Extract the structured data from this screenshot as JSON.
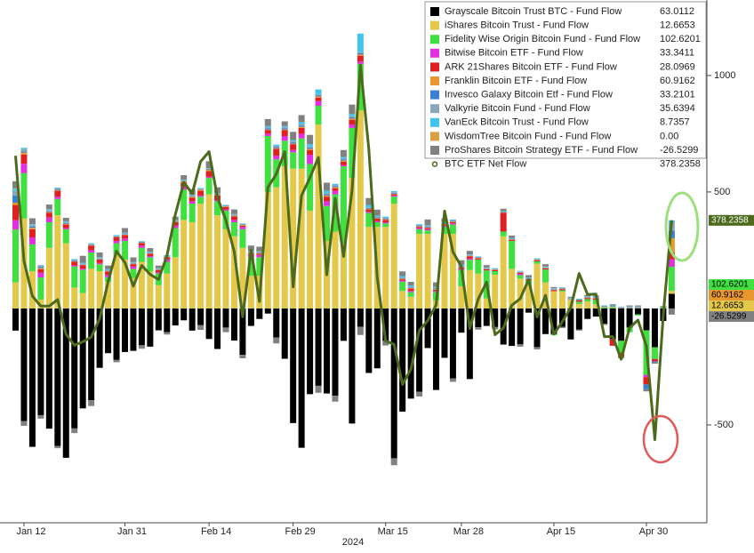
{
  "chart_data": {
    "type": "bar",
    "stacked": true,
    "categories": [
      null,
      "Jan 12",
      null,
      null,
      null,
      null,
      null,
      null,
      null,
      null,
      null,
      null,
      null,
      "Jan 31",
      null,
      null,
      null,
      null,
      null,
      null,
      null,
      null,
      null,
      "Feb 14",
      null,
      null,
      null,
      null,
      null,
      null,
      null,
      null,
      null,
      "Feb 29",
      null,
      null,
      null,
      null,
      null,
      null,
      null,
      null,
      null,
      null,
      "Mar 15",
      null,
      null,
      null,
      null,
      null,
      null,
      null,
      null,
      "Mar 28",
      null,
      null,
      null,
      null,
      null,
      null,
      null,
      null,
      null,
      null,
      "Apr 15",
      null,
      null,
      null,
      null,
      null,
      null,
      null,
      null,
      null,
      null,
      "Apr 30",
      null,
      null,
      null
    ],
    "x_label": "2024",
    "ylim": [
      -920,
      1324
    ],
    "yticks": [
      1000,
      500,
      -500
    ],
    "series": [
      {
        "name": "Grayscale Bitcoin Trust BTC - Fund Flow",
        "color": "#000000",
        "values": [
          -95,
          -484,
          -594,
          -458,
          -516,
          -590,
          -641,
          -515,
          -429,
          -394,
          -255,
          -192,
          -221,
          -187,
          -182,
          -158,
          -164,
          -94,
          -102,
          -73,
          -51,
          -95,
          -72,
          -131,
          -174,
          -82,
          -138,
          -199,
          -75,
          -45,
          -22,
          -125,
          -216,
          -492,
          -598,
          -368,
          -332,
          -365,
          -375,
          -139,
          -494,
          -79,
          -277,
          -257,
          -139,
          -643,
          -443,
          -387,
          -358,
          -170,
          -350,
          -212,
          -300,
          -104,
          -303,
          -81,
          -75,
          -80,
          -155,
          -161,
          -154,
          -18,
          -166,
          -110,
          -110,
          -79,
          -133,
          -90,
          -45,
          -35,
          -66,
          -130,
          -139,
          -82,
          -25,
          -94,
          -167,
          -54,
          63.0112
        ]
      },
      {
        "name": "iShares Bitcoin Trust - Fund Flow",
        "color": "#e3c84a",
        "values": [
          112,
          386,
          160,
          38,
          260,
          400,
          280,
          90,
          66,
          170,
          160,
          114,
          230,
          210,
          130,
          200,
          160,
          100,
          150,
          220,
          380,
          370,
          450,
          490,
          400,
          340,
          310,
          260,
          140,
          140,
          500,
          520,
          610,
          600,
          600,
          420,
          790,
          290,
          330,
          280,
          560,
          850,
          350,
          350,
          350,
          450,
          75,
          50,
          320,
          320,
          35,
          320,
          320,
          95,
          165,
          150,
          43,
          145,
          310,
          170,
          128,
          100,
          192,
          112,
          74,
          73,
          37,
          19,
          30,
          18,
          0,
          0,
          0,
          0,
          0,
          0,
          0,
          0,
          12.6653
        ]
      },
      {
        "name": "Fidelity Wise Origin Bitcoin Fund - Fund Flow",
        "color": "#3fe03f",
        "values": [
          227,
          195,
          115,
          95,
          110,
          70,
          60,
          90,
          100,
          70,
          30,
          20,
          50,
          80,
          40,
          60,
          60,
          50,
          50,
          125,
          130,
          80,
          30,
          70,
          60,
          80,
          60,
          80,
          80,
          80,
          240,
          120,
          110,
          70,
          130,
          200,
          80,
          150,
          160,
          330,
          215,
          200,
          60,
          20,
          15,
          30,
          40,
          20,
          20,
          15,
          35,
          30,
          40,
          70,
          44,
          60,
          120,
          15,
          20,
          120,
          15,
          20,
          10,
          55,
          -5,
          5,
          0,
          10,
          10,
          20,
          5,
          5,
          -50,
          -20,
          -5,
          -191,
          -50,
          5,
          102.6201
        ]
      },
      {
        "name": "Bitwise Bitcoin ETF - Fund Flow",
        "color": "#e030e0",
        "values": [
          40,
          40,
          30,
          20,
          20,
          10,
          5,
          5,
          5,
          10,
          5,
          10,
          10,
          10,
          10,
          10,
          5,
          5,
          10,
          10,
          10,
          10,
          5,
          5,
          5,
          5,
          10,
          10,
          10,
          10,
          10,
          15,
          20,
          10,
          20,
          40,
          20,
          20,
          15,
          5,
          15,
          10,
          5,
          5,
          5,
          5,
          5,
          5,
          5,
          5,
          5,
          5,
          5,
          5,
          5,
          0,
          0,
          0,
          0,
          0,
          5,
          0,
          0,
          0,
          0,
          0,
          0,
          0,
          0,
          0,
          0,
          0,
          0,
          0,
          0,
          -10,
          0,
          0,
          33.3411
        ]
      },
      {
        "name": "ARK 21Shares Bitcoin ETF - Fund Flow",
        "color": "#e02020",
        "values": [
          65,
          40,
          35,
          15,
          20,
          25,
          15,
          15,
          15,
          20,
          15,
          15,
          15,
          15,
          10,
          10,
          10,
          10,
          10,
          15,
          20,
          15,
          20,
          25,
          20,
          10,
          15,
          5,
          5,
          5,
          15,
          30,
          25,
          25,
          25,
          20,
          15,
          20,
          10,
          15,
          20,
          25,
          10,
          10,
          10,
          5,
          5,
          10,
          5,
          5,
          5,
          5,
          5,
          5,
          10,
          5,
          5,
          5,
          80,
          5,
          5,
          5,
          5,
          5,
          5,
          5,
          0,
          5,
          5,
          5,
          0,
          -30,
          -20,
          0,
          0,
          -31,
          -10,
          0,
          28.0969
        ]
      },
      {
        "name": "Franklin Bitcoin ETF - Fund Flow",
        "color": "#e8962e",
        "values": [
          10,
          8,
          6,
          5,
          4,
          3,
          3,
          2,
          2,
          2,
          2,
          2,
          2,
          2,
          2,
          2,
          2,
          2,
          2,
          2,
          5,
          5,
          5,
          5,
          3,
          3,
          3,
          3,
          3,
          3,
          3,
          3,
          3,
          3,
          5,
          5,
          5,
          5,
          5,
          5,
          5,
          5,
          3,
          3,
          3,
          3,
          3,
          3,
          3,
          3,
          3,
          3,
          3,
          3,
          2,
          2,
          2,
          2,
          2,
          2,
          2,
          2,
          2,
          2,
          2,
          2,
          2,
          2,
          2,
          2,
          2,
          2,
          2,
          2,
          2,
          0,
          0,
          0,
          60.9162
        ]
      },
      {
        "name": "Invesco Galaxy Bitcoin Etf - Fund Flow",
        "color": "#3a7fd0",
        "values": [
          30,
          5,
          5,
          5,
          3,
          3,
          3,
          2,
          2,
          2,
          2,
          2,
          2,
          2,
          2,
          2,
          2,
          2,
          2,
          2,
          2,
          2,
          2,
          2,
          2,
          2,
          2,
          2,
          2,
          2,
          5,
          5,
          5,
          5,
          5,
          5,
          5,
          5,
          5,
          5,
          5,
          5,
          3,
          3,
          3,
          3,
          3,
          3,
          3,
          3,
          3,
          3,
          3,
          3,
          2,
          2,
          2,
          2,
          2,
          2,
          2,
          2,
          2,
          2,
          2,
          2,
          2,
          2,
          2,
          2,
          2,
          2,
          2,
          2,
          2,
          -20,
          -5,
          0,
          33.2101
        ]
      },
      {
        "name": "Valkyrie Bitcoin Fund - Fund Flow",
        "color": "#8aa6bb",
        "values": [
          20,
          10,
          5,
          5,
          5,
          5,
          5,
          5,
          3,
          3,
          3,
          3,
          3,
          3,
          3,
          3,
          3,
          3,
          3,
          3,
          3,
          3,
          3,
          3,
          3,
          3,
          3,
          3,
          3,
          3,
          5,
          5,
          5,
          5,
          5,
          5,
          5,
          5,
          5,
          5,
          5,
          5,
          3,
          3,
          3,
          3,
          3,
          3,
          3,
          3,
          3,
          3,
          3,
          3,
          2,
          2,
          2,
          2,
          2,
          2,
          2,
          2,
          2,
          2,
          2,
          2,
          2,
          2,
          2,
          2,
          2,
          2,
          2,
          2,
          2,
          0,
          0,
          0,
          35.6394
        ]
      },
      {
        "name": "VanEck Bitcoin Trust - Fund Flow",
        "color": "#40c4ec",
        "values": [
          10,
          5,
          5,
          3,
          3,
          3,
          3,
          3,
          3,
          3,
          3,
          3,
          3,
          3,
          2,
          2,
          2,
          2,
          2,
          2,
          2,
          2,
          2,
          2,
          2,
          2,
          2,
          2,
          2,
          2,
          5,
          5,
          5,
          5,
          10,
          10,
          20,
          10,
          5,
          5,
          10,
          80,
          10,
          5,
          5,
          5,
          5,
          5,
          3,
          3,
          3,
          3,
          3,
          3,
          2,
          2,
          2,
          2,
          2,
          2,
          2,
          2,
          2,
          2,
          2,
          2,
          2,
          2,
          2,
          2,
          2,
          2,
          2,
          2,
          2,
          0,
          0,
          0,
          8.7357
        ]
      },
      {
        "name": "WisdomTree Bitcoin Fund - Fund Flow",
        "color": "#d8a040",
        "legend_value_label": "0.00",
        "values": [
          2,
          1,
          1,
          1,
          1,
          0,
          0,
          0,
          0,
          0,
          0,
          0,
          0,
          0,
          0,
          0,
          0,
          0,
          0,
          0,
          0,
          0,
          0,
          0,
          0,
          0,
          0,
          0,
          0,
          0,
          0,
          0,
          0,
          0,
          0,
          0,
          0,
          0,
          0,
          0,
          0,
          0,
          0,
          0,
          0,
          0,
          0,
          0,
          0,
          0,
          0,
          0,
          0,
          0,
          0,
          0,
          0,
          0,
          0,
          0,
          0,
          0,
          0,
          0,
          0,
          0,
          0,
          0,
          0,
          0,
          0,
          0,
          0,
          0,
          0,
          0,
          0,
          0,
          0
        ]
      },
      {
        "name": "ProShares Bitcoin Strategy ETF - Fund Flow",
        "color": "#808080",
        "values": [
          30,
          -20,
          25,
          -15,
          20,
          -10,
          15,
          -20,
          30,
          -25,
          20,
          15,
          -10,
          20,
          20,
          -15,
          15,
          10,
          -10,
          15,
          20,
          25,
          -20,
          30,
          25,
          -20,
          20,
          -15,
          25,
          20,
          30,
          -25,
          20,
          35,
          30,
          40,
          -30,
          35,
          -25,
          30,
          40,
          -35,
          30,
          25,
          -20,
          -30,
          20,
          15,
          -20,
          25,
          20,
          15,
          -15,
          20,
          15,
          -10,
          10,
          -10,
          10,
          10,
          -10,
          10,
          -10,
          10,
          5,
          -5,
          5,
          -5,
          5,
          5,
          -5,
          5,
          -5,
          5,
          5,
          -10,
          -5,
          5,
          -26.5299
        ]
      }
    ],
    "net": {
      "name": "BTC ETF Net Flow",
      "color": "#4b6a1c",
      "values": [
        655,
        204,
        53,
        10,
        10,
        38,
        -111,
        -158,
        -143,
        -123,
        -44,
        115,
        246,
        197,
        96,
        185,
        146,
        124,
        227,
        403,
        541,
        493,
        631,
        673,
        477,
        379,
        243,
        -36,
        251,
        30,
        520,
        577,
        673,
        92,
        484,
        562,
        648,
        144,
        473,
        223,
        505,
        1045,
        684,
        132,
        -139,
        -154,
        -326,
        -261,
        -94,
        -53,
        15,
        418,
        243,
        179,
        -86,
        40,
        113,
        -113,
        -84,
        14,
        42,
        124,
        -37,
        56,
        -110,
        -57,
        4,
        150,
        60,
        62,
        -121,
        -121,
        -218,
        -83,
        -50,
        -162,
        -563,
        -30,
        378.2358
      ]
    }
  }
}
